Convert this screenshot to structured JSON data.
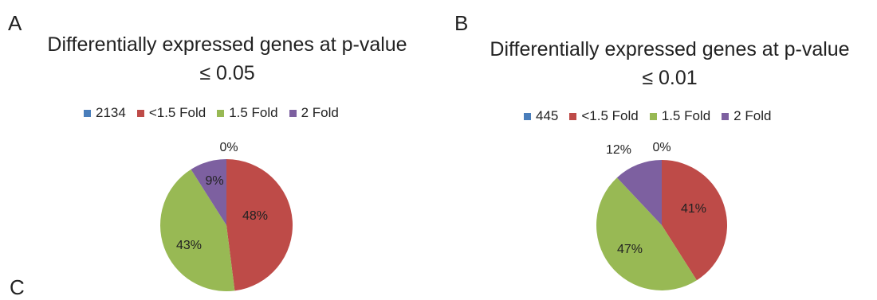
{
  "panels": {
    "a": "A",
    "b": "B",
    "c": "C"
  },
  "chart_data": [
    {
      "type": "pie",
      "title": "Differentially expressed genes at p-value",
      "subtitle": "≤ 0.05",
      "legend_position": "top",
      "series": [
        {
          "name": "2134",
          "value": 0,
          "label": "0%",
          "color": "#4a7ebb"
        },
        {
          "name": "<1.5 Fold",
          "value": 48,
          "label": "48%",
          "color": "#be4b48"
        },
        {
          "name": "1.5 Fold",
          "value": 43,
          "label": "43%",
          "color": "#98b954"
        },
        {
          "name": "2 Fold",
          "value": 9,
          "label": "9%",
          "color": "#7d60a0"
        }
      ]
    },
    {
      "type": "pie",
      "title": "Differentially expressed genes at p-value",
      "subtitle": "≤ 0.01",
      "legend_position": "top",
      "series": [
        {
          "name": "445",
          "value": 0,
          "label": "0%",
          "color": "#4a7ebb"
        },
        {
          "name": "<1.5 Fold",
          "value": 41,
          "label": "41%",
          "color": "#be4b48"
        },
        {
          "name": "1.5 Fold",
          "value": 47,
          "label": "47%",
          "color": "#98b954"
        },
        {
          "name": "2 Fold",
          "value": 12,
          "label": "12%",
          "color": "#7d60a0"
        }
      ]
    }
  ]
}
